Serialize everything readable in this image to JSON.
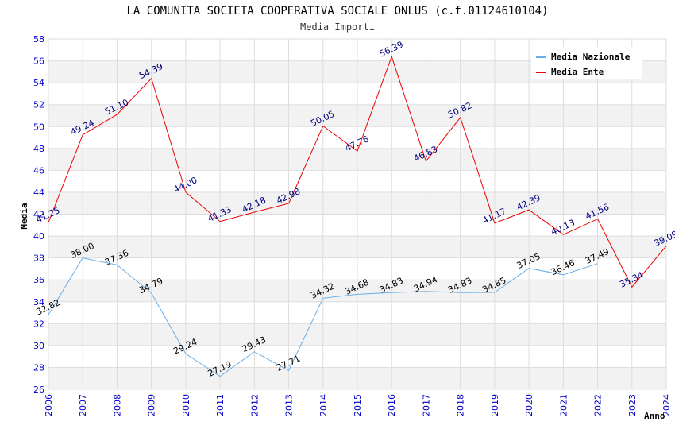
{
  "chart_data": {
    "type": "line",
    "title": "LA COMUNITA SOCIETA COOPERATIVA SOCIALE ONLUS (c.f.01124610104)",
    "subtitle": "Media Importi",
    "xlabel": "Anno",
    "ylabel": "Media",
    "ylim": [
      26,
      58
    ],
    "ytick_step": 2,
    "grid": true,
    "legend_position": "top-right",
    "x": [
      "2006",
      "2007",
      "2008",
      "2009",
      "2010",
      "2011",
      "2012",
      "2013",
      "2014",
      "2015",
      "2016",
      "2017",
      "2018",
      "2019",
      "2020",
      "2021",
      "2022",
      "2023",
      "2024"
    ],
    "series": [
      {
        "name": "Media Nazionale",
        "color": "#6aaee8",
        "label_color": "#000000",
        "values": [
          32.82,
          38.0,
          37.36,
          34.79,
          29.24,
          27.19,
          29.43,
          27.71,
          34.32,
          34.68,
          34.83,
          34.94,
          34.83,
          34.85,
          37.05,
          36.46,
          37.49,
          null,
          null
        ],
        "labels": [
          "32.82",
          "38.00",
          "37.36",
          "34.79",
          "29.24",
          "27.19",
          "29.43",
          "27.71",
          "34.32",
          "34.68",
          "34.83",
          "34.94",
          "34.83",
          "34.85",
          "37.05",
          "36.46",
          "37.49",
          "",
          ""
        ]
      },
      {
        "name": "Media Ente",
        "color": "#ee0000",
        "label_color": "#000080",
        "values": [
          41.25,
          49.24,
          51.1,
          54.39,
          44.0,
          41.33,
          42.18,
          42.98,
          50.05,
          47.76,
          56.39,
          46.83,
          50.82,
          41.17,
          42.39,
          40.13,
          41.56,
          35.34,
          39.09
        ],
        "labels": [
          "41.25",
          "49.24",
          "51.10",
          "54.39",
          "44.00",
          "41.33",
          "42.18",
          "42.98",
          "50.05",
          "47.76",
          "56.39",
          "46.83",
          "50.82",
          "41.17",
          "42.39",
          "40.13",
          "41.56",
          "35.34",
          "39.09"
        ]
      }
    ]
  }
}
